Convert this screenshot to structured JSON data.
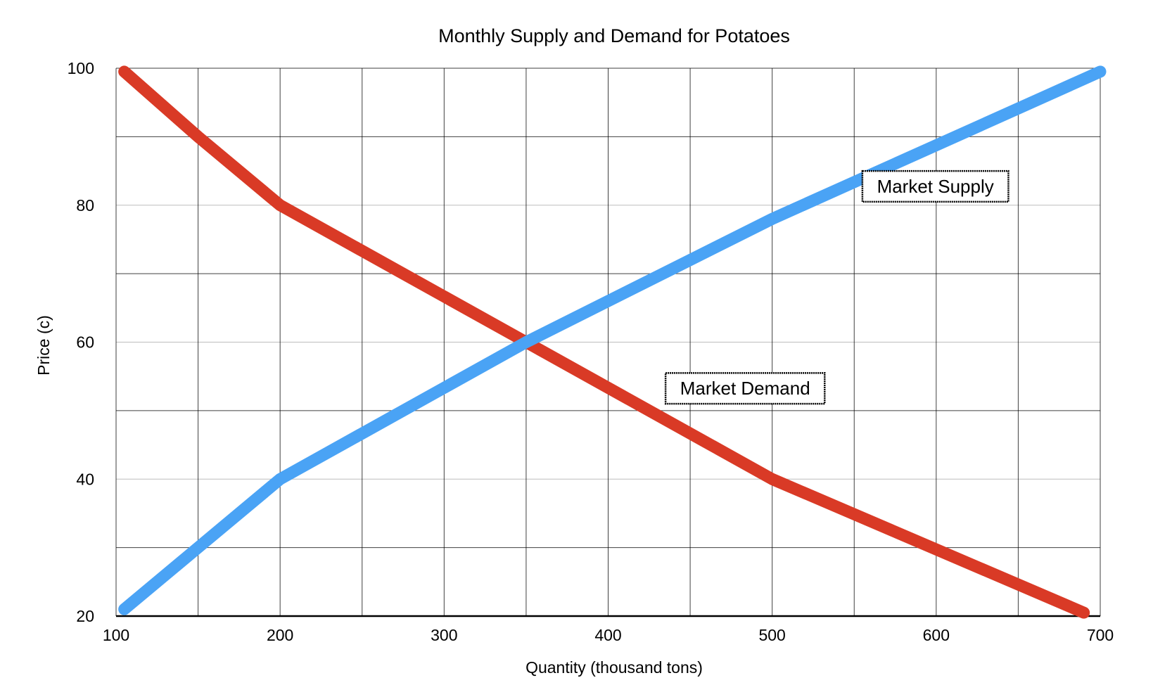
{
  "chart_data": {
    "type": "line",
    "title": "Monthly Supply and Demand for Potatoes",
    "xlabel": "Quantity (thousand tons)",
    "ylabel": "Price (c)",
    "xlim": [
      100,
      700
    ],
    "ylim": [
      20,
      100
    ],
    "x_ticks": [
      100,
      200,
      300,
      400,
      500,
      600,
      700
    ],
    "y_ticks": [
      20,
      40,
      60,
      80,
      100
    ],
    "x_gridlines": [
      100,
      150,
      200,
      250,
      300,
      350,
      400,
      450,
      500,
      550,
      600,
      650,
      700
    ],
    "y_gridlines_major": [
      20,
      30,
      50,
      70,
      90,
      100
    ],
    "y_gridlines_minor": [
      40,
      60,
      80
    ],
    "grid": true,
    "series": [
      {
        "name": "Market Demand",
        "color": "#d93a26",
        "x": [
          105,
          150,
          200,
          350,
          500,
          690
        ],
        "y": [
          99.5,
          90,
          80,
          60,
          40,
          20.5
        ]
      },
      {
        "name": "Market Supply",
        "color": "#4aa3f5",
        "x": [
          105,
          150,
          200,
          350,
          500,
          700
        ],
        "y": [
          21,
          30,
          40,
          60,
          78,
          99.5
        ]
      }
    ],
    "annotations": [
      {
        "text": "Market Supply",
        "x": 555,
        "y": 80.5,
        "x_end": 644,
        "y_end": 85
      },
      {
        "text": "Market Demand",
        "x": 435,
        "y": 51,
        "x_end": 532,
        "y_end": 55.5
      }
    ]
  }
}
